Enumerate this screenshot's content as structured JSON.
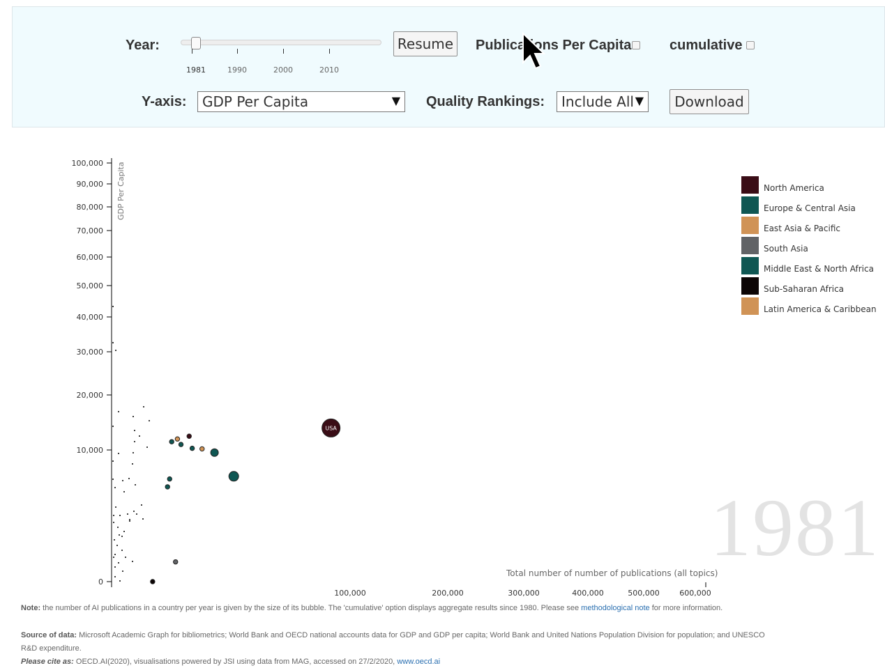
{
  "controls": {
    "year_label": "Year:",
    "slider_ticks": [
      "1981",
      "1990",
      "2000",
      "2010"
    ],
    "slider_value": 1981,
    "resume_label": "Resume",
    "per_capita_label": "Publications Per Capita",
    "per_capita_checked": false,
    "cumulative_label": "cumulative",
    "cumulative_checked": false,
    "yaxis_label": "Y-axis:",
    "yaxis_value": "GDP Per Capita",
    "quality_label": "Quality Rankings:",
    "quality_value": "Include All",
    "download_label": "Download"
  },
  "chart_data": {
    "type": "scatter",
    "ylabel": "GDP Per Capita",
    "xlabel": "Total number of number of publications (all topics)",
    "y_ticks": [
      "100,000",
      "90,000",
      "80,000",
      "70,000",
      "60,000",
      "50,000",
      "40,000",
      "30,000",
      "20,000",
      "10,000",
      "0"
    ],
    "x_ticks": [
      "100,000",
      "200,000",
      "300,000",
      "400,000",
      "500,000",
      "600,000"
    ],
    "year_watermark": "1981",
    "legend": [
      {
        "name": "North America",
        "color": "#3a0d16"
      },
      {
        "name": "Europe & Central Asia",
        "color": "#0f5753"
      },
      {
        "name": "East Asia & Pacific",
        "color": "#d09356"
      },
      {
        "name": "South Asia",
        "color": "#616366"
      },
      {
        "name": "Middle East & North Africa",
        "color": "#0f5753"
      },
      {
        "name": "Sub-Saharan Africa",
        "color": "#0c0505"
      },
      {
        "name": "Latin America & Caribbean",
        "color": "#d09356"
      }
    ],
    "bubbles": [
      {
        "label": "USA",
        "x": 100000,
        "y": 14000,
        "region": "North America",
        "size": "large"
      },
      {
        "label": "",
        "x": 31000,
        "y": 8000,
        "region": "Europe & Central Asia",
        "size": "medium"
      },
      {
        "label": "",
        "x": 22000,
        "y": 9800,
        "region": "Europe & Central Asia",
        "size": "medium-small"
      },
      {
        "label": "",
        "x": 17000,
        "y": 10200,
        "region": "East Asia & Pacific",
        "size": "small"
      },
      {
        "label": "",
        "x": 13500,
        "y": 10300,
        "region": "Europe & Central Asia",
        "size": "small"
      },
      {
        "label": "",
        "x": 12500,
        "y": 12500,
        "region": "North America",
        "size": "small"
      },
      {
        "label": "",
        "x": 9000,
        "y": 12000,
        "region": "Latin America & Caribbean",
        "size": "small"
      },
      {
        "label": "",
        "x": 10000,
        "y": 11000,
        "region": "Europe & Central Asia",
        "size": "small"
      },
      {
        "label": "",
        "x": 7500,
        "y": 11500,
        "region": "Europe & Central Asia",
        "size": "small"
      },
      {
        "label": "",
        "x": 7000,
        "y": 7800,
        "region": "Europe & Central Asia",
        "size": "small"
      },
      {
        "label": "",
        "x": 6500,
        "y": 7200,
        "region": "Europe & Central Asia",
        "size": "small"
      },
      {
        "label": "",
        "x": 8500,
        "y": 1500,
        "region": "South Asia",
        "size": "small"
      },
      {
        "label": "",
        "x": 3500,
        "y": 0,
        "region": "Sub-Saharan Africa",
        "size": "small"
      }
    ]
  },
  "footer": {
    "note_label": "Note:",
    "note_text": " the number of AI publications in a country per year is given by the size of its bubble. The 'cumulative' option displays aggregate results since 1980. Please see ",
    "note_link": "methodological note",
    "note_end": " for more information.",
    "source_label": "Source of data:",
    "source_text": " Microsoft Academic Graph for bibliometrics; World Bank and OECD national accounts data for GDP and GDP per capita; World Bank and United Nations Population Division for population; and UNESCO",
    "source_text2": "R&D expenditure.",
    "cite_label": "Please cite as:",
    "cite_text": " OECD.AI(2020), visualisations powered by JSI using data from MAG, accessed on 27/2/2020, ",
    "cite_link": "www.oecd.ai"
  }
}
